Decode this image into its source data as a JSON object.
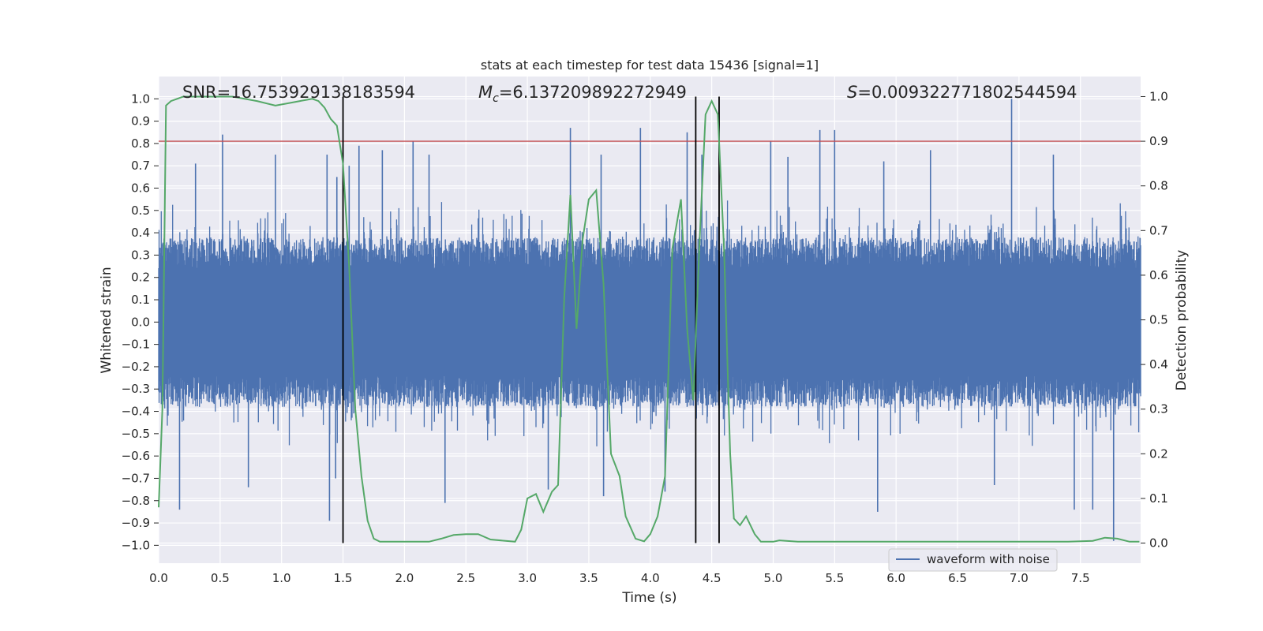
{
  "chart_data": {
    "type": "line",
    "title": "stats at each timestep for test data 15436 [signal=1]",
    "xlabel": "Time (s)",
    "ylabel_left": "Whitened strain",
    "ylabel_right": "Detection probability",
    "xlim": [
      0.0,
      7.99
    ],
    "ylim_left": [
      -1.08,
      1.1
    ],
    "ylim_right": [
      -0.045,
      1.045
    ],
    "x_ticks": [
      0.0,
      0.5,
      1.0,
      1.5,
      2.0,
      2.5,
      3.0,
      3.5,
      4.0,
      4.5,
      5.0,
      5.5,
      6.0,
      6.5,
      7.0,
      7.5
    ],
    "x_tick_labels": [
      "0.0",
      "0.5",
      "1.0",
      "1.5",
      "2.0",
      "2.5",
      "3.0",
      "3.5",
      "4.0",
      "4.5",
      "5.0",
      "5.5",
      "6.0",
      "6.5",
      "7.0",
      "7.5"
    ],
    "y_left_ticks": [
      1.0,
      0.9,
      0.8,
      0.7,
      0.6,
      0.5,
      0.4,
      0.3,
      0.2,
      0.1,
      0.0,
      -0.1,
      -0.2,
      -0.3,
      -0.4,
      -0.5,
      -0.6,
      -0.7,
      -0.8,
      -0.9,
      -1.0
    ],
    "y_left_tick_labels": [
      "1.0",
      "0.9",
      "0.8",
      "0.7",
      "0.6",
      "0.5",
      "0.4",
      "0.3",
      "0.2",
      "0.1",
      "0.0",
      "−0.1",
      "−0.2",
      "−0.3",
      "−0.4",
      "−0.5",
      "−0.6",
      "−0.7",
      "−0.8",
      "−0.9",
      "−1.0"
    ],
    "y_right_ticks": [
      1.0,
      0.9,
      0.8,
      0.7,
      0.6,
      0.5,
      0.4,
      0.3,
      0.2,
      0.1,
      0.0
    ],
    "y_right_tick_labels": [
      "1.0",
      "0.9",
      "0.8",
      "0.7",
      "0.6",
      "0.5",
      "0.4",
      "0.3",
      "0.2",
      "0.1",
      "0.0"
    ],
    "annotations": {
      "snr": "SNR=16.753929138183594",
      "mc_symbol": "M",
      "mc_sub": "c",
      "mc_value": "=6.137209892272949",
      "s_symbol": "S",
      "s_value": "=0.009322771802544594"
    },
    "threshold_right": 0.9,
    "threshold_color": "#c44e52",
    "vertical_lines_x": [
      1.5,
      4.37,
      4.56
    ],
    "waveform": {
      "name": "waveform with noise",
      "color": "#4c72b0",
      "description_points": "dense noisy strain, core amplitude about ±0.35, peaks up to about ±0.6 with occasional spikes",
      "peaks": [
        [
          0.52,
          0.84
        ],
        [
          0.3,
          0.71
        ],
        [
          0.95,
          0.75
        ],
        [
          1.37,
          0.75
        ],
        [
          1.45,
          0.65
        ],
        [
          1.55,
          0.7
        ],
        [
          1.63,
          0.79
        ],
        [
          1.82,
          0.77
        ],
        [
          2.07,
          0.81
        ],
        [
          2.2,
          0.75
        ],
        [
          3.35,
          0.87
        ],
        [
          3.6,
          0.75
        ],
        [
          3.92,
          0.87
        ],
        [
          4.3,
          0.85
        ],
        [
          4.42,
          0.75
        ],
        [
          4.98,
          0.81
        ],
        [
          5.12,
          0.74
        ],
        [
          5.38,
          0.86
        ],
        [
          5.5,
          0.86
        ],
        [
          5.9,
          0.72
        ],
        [
          6.28,
          0.77
        ],
        [
          6.94,
          1.0
        ],
        [
          7.28,
          0.75
        ]
      ],
      "troughs": [
        [
          0.17,
          -0.84
        ],
        [
          0.73,
          -0.74
        ],
        [
          1.39,
          -0.89
        ],
        [
          1.44,
          -0.7
        ],
        [
          2.33,
          -0.81
        ],
        [
          3.17,
          -0.75
        ],
        [
          3.62,
          -0.78
        ],
        [
          4.12,
          -0.76
        ],
        [
          5.85,
          -0.85
        ],
        [
          6.8,
          -0.73
        ],
        [
          7.45,
          -0.84
        ],
        [
          7.6,
          -0.84
        ],
        [
          7.77,
          -0.98
        ]
      ]
    },
    "detection_probability": {
      "color": "#55a868",
      "x": [
        0.0,
        0.03,
        0.06,
        0.1,
        0.2,
        0.4,
        0.6,
        0.8,
        0.95,
        1.05,
        1.15,
        1.25,
        1.3,
        1.35,
        1.4,
        1.45,
        1.5,
        1.55,
        1.6,
        1.65,
        1.7,
        1.75,
        1.8,
        2.0,
        2.2,
        2.3,
        2.4,
        2.5,
        2.6,
        2.7,
        2.9,
        2.95,
        3.0,
        3.07,
        3.13,
        3.2,
        3.25,
        3.3,
        3.35,
        3.4,
        3.45,
        3.5,
        3.56,
        3.62,
        3.68,
        3.75,
        3.8,
        3.88,
        3.95,
        4.0,
        4.06,
        4.12,
        4.18,
        4.25,
        4.3,
        4.35,
        4.4,
        4.45,
        4.5,
        4.55,
        4.6,
        4.65,
        4.68,
        4.73,
        4.78,
        4.85,
        4.9,
        5.0,
        5.05,
        5.2,
        5.5,
        6.0,
        6.5,
        7.0,
        7.4,
        7.6,
        7.7,
        7.8,
        7.9,
        7.98
      ],
      "y": [
        0.08,
        0.3,
        0.98,
        0.99,
        1.0,
        1.0,
        1.0,
        0.99,
        0.98,
        0.985,
        0.99,
        0.995,
        0.99,
        0.975,
        0.95,
        0.935,
        0.85,
        0.62,
        0.3,
        0.15,
        0.05,
        0.01,
        0.003,
        0.003,
        0.003,
        0.01,
        0.018,
        0.02,
        0.02,
        0.008,
        0.003,
        0.03,
        0.1,
        0.11,
        0.07,
        0.115,
        0.13,
        0.55,
        0.78,
        0.48,
        0.68,
        0.77,
        0.79,
        0.58,
        0.2,
        0.15,
        0.06,
        0.01,
        0.004,
        0.02,
        0.06,
        0.15,
        0.66,
        0.77,
        0.48,
        0.32,
        0.67,
        0.96,
        0.99,
        0.96,
        0.66,
        0.2,
        0.055,
        0.04,
        0.06,
        0.02,
        0.003,
        0.003,
        0.006,
        0.003,
        0.003,
        0.003,
        0.003,
        0.003,
        0.003,
        0.005,
        0.012,
        0.01,
        0.003,
        0.003
      ]
    },
    "legend": {
      "entries": [
        "waveform with noise"
      ],
      "position": "lower-right"
    }
  }
}
